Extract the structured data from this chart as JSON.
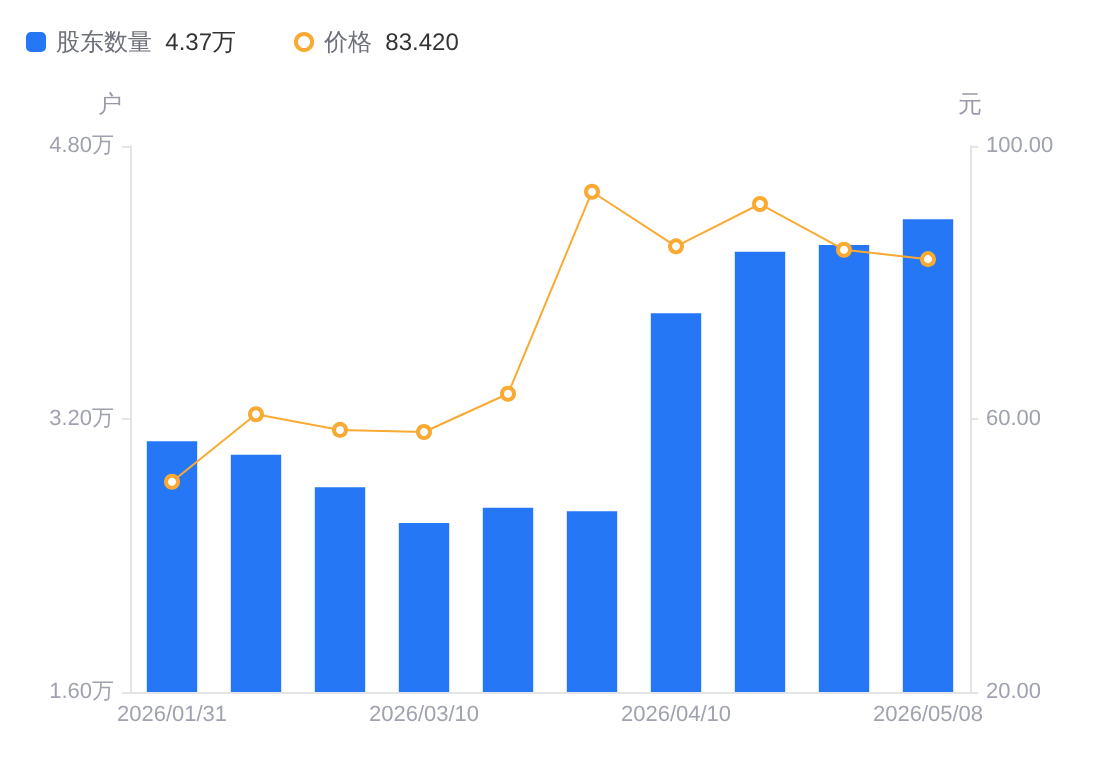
{
  "chart_data": {
    "type": "bar",
    "categories": [
      "2026/01/31",
      null,
      null,
      "2026/03/10",
      null,
      null,
      "2026/04/10",
      null,
      null,
      "2026/05/08"
    ],
    "series": [
      {
        "name": "股东数量",
        "color": "#2577f5",
        "values": [
          3.07,
          2.99,
          2.8,
          2.59,
          2.68,
          2.66,
          3.82,
          4.18,
          4.22,
          4.37
        ]
      },
      {
        "name": "价格",
        "type": "line",
        "axis": "y2",
        "color": "#f9aa33",
        "values": [
          50.8,
          60.7,
          58.4,
          58.1,
          63.7,
          93.3,
          85.3,
          91.5,
          84.8,
          83.42
        ]
      }
    ],
    "ylabel": "户",
    "y2label": "元",
    "ylim": [
      1.6,
      4.8
    ],
    "yticks": [
      {
        "value": 1.6,
        "label": "1.60万"
      },
      {
        "value": 3.2,
        "label": "3.20万"
      },
      {
        "value": 4.8,
        "label": "4.80万"
      }
    ],
    "y2lim": [
      20,
      100
    ],
    "y2ticks": [
      {
        "value": 20,
        "label": "20.00"
      },
      {
        "value": 60,
        "label": "60.00"
      },
      {
        "value": 100,
        "label": "100.00"
      }
    ],
    "annotations": [
      "4.37万",
      "83.420"
    ],
    "legend": "top left",
    "grid": false,
    "marker": "circle"
  }
}
